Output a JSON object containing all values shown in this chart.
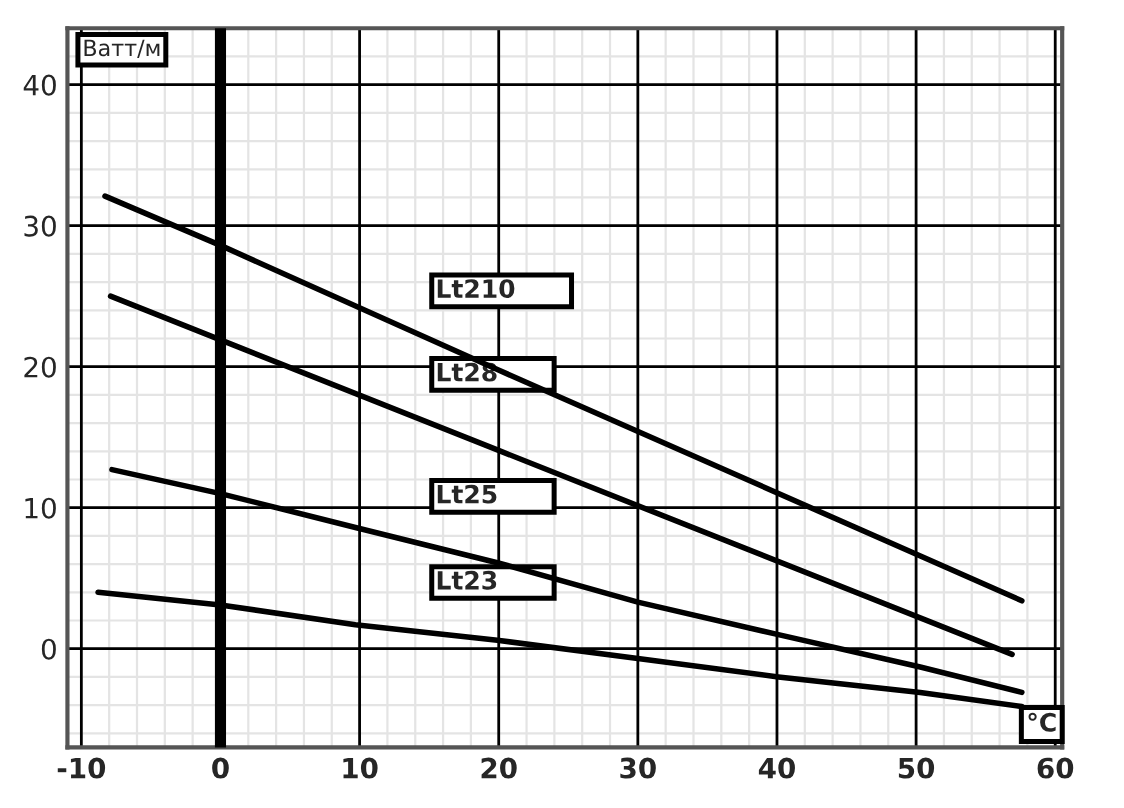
{
  "chart_data": {
    "type": "line",
    "xlabel": "°C",
    "ylabel": "Ватт/м",
    "xlim": [
      -11,
      60.5
    ],
    "ylim": [
      -7,
      44
    ],
    "xticks": [
      -10,
      0,
      10,
      20,
      30,
      40,
      50,
      60
    ],
    "yticks": [
      0,
      10,
      20,
      30,
      40
    ],
    "grid": true,
    "marker": "none",
    "line_style": "solid",
    "legend": false,
    "ref_lines": [
      {
        "axis": "x",
        "value": 0,
        "color": "#000000"
      }
    ],
    "series": [
      {
        "name": "Lt210",
        "color": "#000000",
        "x": [
          -8.3,
          0,
          19.9,
          57.6
        ],
        "values": [
          32.1,
          28.6,
          19.8,
          3.4
        ]
      },
      {
        "name": "Lt28",
        "color": "#000000",
        "x": [
          -7.9,
          0,
          19.9,
          56.9
        ],
        "values": [
          25,
          21.9,
          14.1,
          -0.4
        ]
      },
      {
        "name": "Lt25",
        "color": "#000000",
        "x": [
          -7.8,
          0,
          9.7,
          19.9,
          30,
          40.1,
          50.3,
          57.6
        ],
        "values": [
          12.7,
          11,
          8.6,
          6.1,
          3.3,
          1,
          -1.3,
          -3.1
        ]
      },
      {
        "name": "Lt23",
        "color": "#000000",
        "x": [
          -8.8,
          0,
          9.7,
          19.9,
          30,
          40.1,
          50.3,
          57.6
        ],
        "values": [
          4,
          3.1,
          1.7,
          0.6,
          -0.7,
          -2,
          -3.1,
          -4.1
        ]
      }
    ]
  }
}
